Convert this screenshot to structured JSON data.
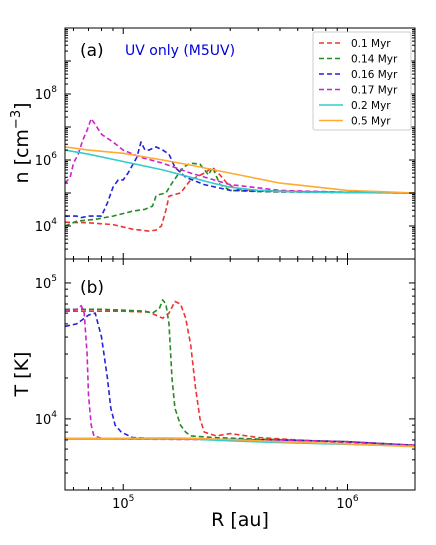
{
  "chart_data": [
    {
      "type": "line",
      "panel_label": "(a)",
      "annotation": "UV only (M5UV)",
      "annotation_color": "#0000dd",
      "ylabel": "n [cm$^{-3}$]",
      "ylabel_main": "n [cm",
      "ylabel_sup": "−3",
      "ylabel_close": "]",
      "xlabel": "",
      "xscale": "log",
      "yscale": "log",
      "xlim": [
        55000,
        2000000
      ],
      "ylim": [
        1000,
        10000000000
      ],
      "yticks": [
        {
          "value": 10000,
          "base": "10",
          "exp": "4"
        },
        {
          "value": 1000000,
          "base": "10",
          "exp": "6"
        },
        {
          "value": 100000000,
          "base": "10",
          "exp": "8"
        }
      ],
      "legend": {
        "location": "top-right"
      },
      "series": [
        {
          "name": "0.1 Myr",
          "color": "#ee3333",
          "style": "dashed",
          "x": [
            55000,
            70000,
            90000,
            110000,
            130000,
            140000,
            148000,
            155000,
            160000,
            170000,
            180000,
            200000,
            230000,
            250000,
            270000,
            290000,
            320000,
            400000,
            600000,
            1000000,
            2000000
          ],
          "y": [
            13000,
            12500,
            11000,
            8000,
            7000,
            7500,
            10000,
            30000,
            80000,
            90000,
            100000,
            250000,
            400000,
            600000,
            350000,
            200000,
            130000,
            120000,
            110000,
            105000,
            100000
          ]
        },
        {
          "name": "0.14 Myr",
          "color": "#228b22",
          "style": "dashed",
          "x": [
            55000,
            62000,
            75000,
            90000,
            110000,
            125000,
            135000,
            140000,
            145000,
            155000,
            165000,
            175000,
            185000,
            200000,
            220000,
            240000,
            250000,
            270000,
            300000,
            400000,
            700000,
            2000000
          ],
          "y": [
            10000,
            14000,
            16000,
            20000,
            28000,
            32000,
            40000,
            80000,
            90000,
            100000,
            200000,
            350000,
            600000,
            800000,
            750000,
            350000,
            600000,
            180000,
            120000,
            110000,
            105000,
            100000
          ]
        },
        {
          "name": "0.16 Myr",
          "color": "#2222dd",
          "style": "dashed",
          "x": [
            55000,
            62000,
            65000,
            70000,
            80000,
            85000,
            90000,
            95000,
            100000,
            105000,
            110000,
            115000,
            120000,
            125000,
            130000,
            140000,
            150000,
            160000,
            170000,
            190000,
            230000,
            300000,
            500000,
            1000000,
            2000000
          ],
          "y": [
            20000,
            20000,
            18000,
            20000,
            20000,
            50000,
            150000,
            250000,
            250000,
            400000,
            700000,
            1200000,
            3500000,
            2000000,
            2000000,
            2500000,
            2000000,
            1500000,
            600000,
            300000,
            180000,
            120000,
            110000,
            105000,
            100000
          ]
        },
        {
          "name": "0.17 Myr",
          "color": "#cc22cc",
          "style": "dashed",
          "x": [
            55000,
            58000,
            60000,
            63000,
            66000,
            69000,
            72000,
            75000,
            80000,
            90000,
            100000,
            120000,
            150000,
            200000,
            300000,
            500000,
            1000000,
            2000000
          ],
          "y": [
            200000,
            300000,
            800000,
            1500000,
            4000000,
            8000000,
            18000000,
            12000000,
            6000000,
            3500000,
            2000000,
            1200000,
            800000,
            400000,
            180000,
            120000,
            105000,
            100000
          ]
        },
        {
          "name": "0.2 Myr",
          "color": "#33cccc",
          "style": "solid",
          "x": [
            55000,
            70000,
            100000,
            150000,
            200000,
            250000,
            300000,
            400000,
            600000,
            1000000,
            2000000
          ],
          "y": [
            2000000,
            1500000,
            900000,
            500000,
            300000,
            200000,
            150000,
            120000,
            108000,
            103000,
            100000
          ]
        },
        {
          "name": "0.5 Myr",
          "color": "#ffaa33",
          "style": "solid",
          "x": [
            55000,
            70000,
            100000,
            150000,
            200000,
            300000,
            500000,
            1000000,
            2000000
          ],
          "y": [
            2500000,
            2000000,
            1600000,
            1000000,
            700000,
            400000,
            200000,
            120000,
            100000
          ]
        }
      ]
    },
    {
      "type": "line",
      "panel_label": "(b)",
      "ylabel": "T [K]",
      "xlabel": "R [au]",
      "xscale": "log",
      "yscale": "log",
      "xlim": [
        55000,
        2000000
      ],
      "ylim": [
        3000,
        150000
      ],
      "xticks": [
        {
          "value": 100000,
          "base": "10",
          "exp": "5"
        },
        {
          "value": 1000000,
          "base": "10",
          "exp": "6"
        }
      ],
      "yticks": [
        {
          "value": 10000,
          "base": "10",
          "exp": "4"
        },
        {
          "value": 100000,
          "base": "10",
          "exp": "5"
        }
      ],
      "series": [
        {
          "name": "0.1 Myr",
          "color": "#ee3333",
          "style": "dashed",
          "x": [
            55000,
            80000,
            100000,
            130000,
            150000,
            160000,
            170000,
            180000,
            190000,
            200000,
            210000,
            220000,
            230000,
            260000,
            300000,
            400000,
            600000,
            1000000,
            2000000
          ],
          "y": [
            62000,
            62000,
            62000,
            61000,
            55000,
            60000,
            73000,
            70000,
            55000,
            35000,
            17000,
            10000,
            8000,
            7500,
            7800,
            7300,
            7000,
            6700,
            6400
          ]
        },
        {
          "name": "0.14 Myr",
          "color": "#228b22",
          "style": "dashed",
          "x": [
            55000,
            80000,
            100000,
            125000,
            135000,
            145000,
            150000,
            155000,
            160000,
            165000,
            170000,
            180000,
            190000,
            200000,
            250000,
            400000,
            1000000,
            2000000
          ],
          "y": [
            64000,
            64000,
            63000,
            62000,
            60000,
            65000,
            75000,
            70000,
            50000,
            20000,
            12000,
            9000,
            8000,
            7500,
            7300,
            7100,
            6800,
            6400
          ]
        },
        {
          "name": "0.16 Myr",
          "color": "#2222dd",
          "style": "dashed",
          "x": [
            55000,
            62000,
            70000,
            75000,
            80000,
            85000,
            88000,
            92000,
            98000,
            110000,
            130000,
            200000,
            500000,
            1000000,
            2000000
          ],
          "y": [
            48000,
            50000,
            58000,
            60000,
            40000,
            20000,
            12000,
            9000,
            8000,
            7300,
            7200,
            7100,
            7000,
            6800,
            6400
          ]
        },
        {
          "name": "0.17 Myr",
          "color": "#cc22cc",
          "style": "dashed",
          "x": [
            55000,
            62000,
            65000,
            67000,
            69000,
            70000,
            72000,
            74000,
            80000,
            100000,
            200000,
            500000,
            1000000,
            2000000
          ],
          "y": [
            62000,
            64000,
            68000,
            60000,
            30000,
            15000,
            9000,
            7500,
            7200,
            7100,
            7050,
            7000,
            6800,
            6400
          ]
        },
        {
          "name": "0.2 Myr",
          "color": "#33cccc",
          "style": "solid",
          "x": [
            55000,
            100000,
            150000,
            200000,
            300000,
            500000,
            1000000,
            2000000
          ],
          "y": [
            7100,
            7100,
            7100,
            7100,
            6900,
            6700,
            6500,
            6300
          ]
        },
        {
          "name": "0.5 Myr",
          "color": "#ffaa33",
          "style": "solid",
          "x": [
            55000,
            100000,
            150000,
            200000,
            300000,
            500000,
            1000000,
            2000000
          ],
          "y": [
            7200,
            7200,
            7250,
            7200,
            7050,
            6800,
            6550,
            6250
          ]
        }
      ]
    }
  ]
}
